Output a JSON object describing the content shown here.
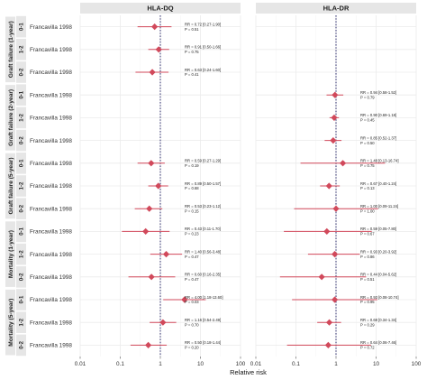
{
  "chart_data": {
    "type": "forest",
    "xlabel": "Relative risk",
    "x_scale": "log",
    "xlim": [
      0.01,
      100
    ],
    "x_ticks": [
      "0.01",
      "0.1",
      "1",
      "10",
      "100"
    ],
    "reference_line": 1,
    "colors": {
      "point": "#d1495b",
      "strip": "#e6e6e6",
      "grid": "#ebebeb",
      "dashed": "#2d2d6e"
    },
    "panels": [
      "HLA-DQ",
      "HLA-DR"
    ],
    "groups": [
      {
        "label": "Graft failure (1-year)",
        "rows": [
          {
            "sub": "0-1",
            "study": "Francavilla 1998",
            "cells": [
              {
                "rr": 0.72,
                "lo": 0.27,
                "hi": 1.9,
                "text": "RR = 0.72 [0.27-1.90]",
                "p": "P = 0.51"
              },
              null
            ]
          },
          {
            "sub": "1-2",
            "study": "Francavilla 1998",
            "cells": [
              {
                "rr": 0.91,
                "lo": 0.5,
                "hi": 1.66,
                "text": "RR = 0.91 [0.50-1.66]",
                "p": "P = 0.75"
              },
              null
            ]
          },
          {
            "sub": "0-2",
            "study": "Francavilla 1998",
            "cells": [
              {
                "rr": 0.63,
                "lo": 0.24,
                "hi": 1.6,
                "text": "RR = 0.63 [0.24-1.60]",
                "p": "P = 0.41"
              },
              null
            ]
          }
        ]
      },
      {
        "label": "Graft failure (2-year)",
        "rows": [
          {
            "sub": "0-1",
            "study": "Francavilla 1998",
            "cells": [
              null,
              {
                "rr": 0.94,
                "lo": 0.58,
                "hi": 1.52,
                "text": "RR = 0.94 [0.58-1.52]",
                "p": "P = 0.79"
              }
            ]
          },
          {
            "sub": "1-2",
            "study": "Francavilla 1998",
            "cells": [
              null,
              {
                "rr": 0.9,
                "lo": 0.69,
                "hi": 1.18,
                "text": "RR = 0.90 [0.69-1.18]",
                "p": "P = 0.45"
              }
            ]
          },
          {
            "sub": "0-2",
            "study": "Francavilla 1998",
            "cells": [
              null,
              {
                "rr": 0.85,
                "lo": 0.52,
                "hi": 1.37,
                "text": "RR = 0.85 [0.52-1.37]",
                "p": "P = 0.50"
              }
            ]
          }
        ]
      },
      {
        "label": "Graft failure (5-year)",
        "rows": [
          {
            "sub": "0-1",
            "study": "Francavilla 1998",
            "cells": [
              {
                "rr": 0.59,
                "lo": 0.27,
                "hi": 1.29,
                "text": "RR = 0.59 [0.27-1.29]",
                "p": "P = 0.19"
              },
              {
                "rr": 1.48,
                "lo": 0.13,
                "hi": 16.74,
                "text": "RR = 1.48 [0.13-16.74]",
                "p": "P = 0.75"
              }
            ]
          },
          {
            "sub": "1-2",
            "study": "Francavilla 1998",
            "cells": [
              {
                "rr": 0.89,
                "lo": 0.5,
                "hi": 1.57,
                "text": "RR = 0.89 [0.50-1.57]",
                "p": "P = 0.68"
              },
              {
                "rr": 0.67,
                "lo": 0.4,
                "hi": 1.24,
                "text": "RR = 0.67 [0.40-1.24]",
                "p": "P = 0.13"
              }
            ]
          },
          {
            "sub": "0-2",
            "study": "Francavilla 1998",
            "cells": [
              {
                "rr": 0.53,
                "lo": 0.23,
                "hi": 1.12,
                "text": "RR = 0.53 [0.23-1.12]",
                "p": "P = 0.15"
              },
              {
                "rr": 1.0,
                "lo": 0.09,
                "hi": 11.24,
                "text": "RR = 1.00 [0.09-11.24]",
                "p": "P = 1.00"
              }
            ]
          }
        ]
      },
      {
        "label": "Mortality (1-year)",
        "rows": [
          {
            "sub": "0-1",
            "study": "Francavilla 1998",
            "cells": [
              {
                "rr": 0.43,
                "lo": 0.11,
                "hi": 1.7,
                "text": "RR = 0.43 [0.11-1.70]",
                "p": "P = 0.23"
              },
              {
                "rr": 0.59,
                "lo": 0.05,
                "hi": 7.8,
                "text": "RR = 0.59 [0.05-7.80]",
                "p": "P = 0.67"
              }
            ]
          },
          {
            "sub": "1-2",
            "study": "Francavilla 1998",
            "cells": [
              {
                "rr": 1.4,
                "lo": 0.56,
                "hi": 3.48,
                "text": "RR = 1.40 [0.56-3.48]",
                "p": "P = 0.47"
              },
              {
                "rr": 0.93,
                "lo": 0.2,
                "hi": 3.92,
                "text": "RR = 0.93 [0.20-3.92]",
                "p": "P = 0.86"
              }
            ]
          },
          {
            "sub": "0-2",
            "study": "Francavilla 1998",
            "cells": [
              {
                "rr": 0.6,
                "lo": 0.16,
                "hi": 2.35,
                "text": "RR = 0.60 [0.16-2.35]",
                "p": "P = 0.47"
              },
              {
                "rr": 0.44,
                "lo": 0.04,
                "hi": 5.62,
                "text": "RR = 0.44 [0.04-5.62]",
                "p": "P = 0.51"
              }
            ]
          }
        ]
      },
      {
        "label": "Mortality (5-year)",
        "rows": [
          {
            "sub": "0-1",
            "study": "Francavilla 1998",
            "cells": [
              {
                "rr": 4.0,
                "lo": 1.18,
                "hi": 13.6,
                "text": "RR = 4.00 [1.18-13.60]",
                "p": "P = 0.03"
              },
              {
                "rr": 0.93,
                "lo": 0.08,
                "hi": 10.74,
                "text": "RR = 0.93 [0.08-10.74]",
                "p": "P = 0.95"
              }
            ]
          },
          {
            "sub": "1-2",
            "study": "Francavilla 1998",
            "cells": [
              {
                "rr": 1.16,
                "lo": 0.54,
                "hi": 2.49,
                "text": "RR = 1.16 [0.54-2.49]",
                "p": "P = 0.70"
              },
              {
                "rr": 0.68,
                "lo": 0.34,
                "hi": 1.34,
                "text": "RR = 0.68 [0.34-1.34]",
                "p": "P = 0.29"
              }
            ]
          },
          {
            "sub": "0-2",
            "study": "Francavilla 1998",
            "cells": [
              {
                "rr": 0.5,
                "lo": 0.18,
                "hi": 1.44,
                "text": "RR = 0.50 [0.18-1.44]",
                "p": "P = 0.20"
              },
              {
                "rr": 0.64,
                "lo": 0.06,
                "hi": 7.46,
                "text": "RR = 0.64 [0.06-7.46]",
                "p": "P = 0.72"
              }
            ]
          }
        ]
      }
    ]
  }
}
